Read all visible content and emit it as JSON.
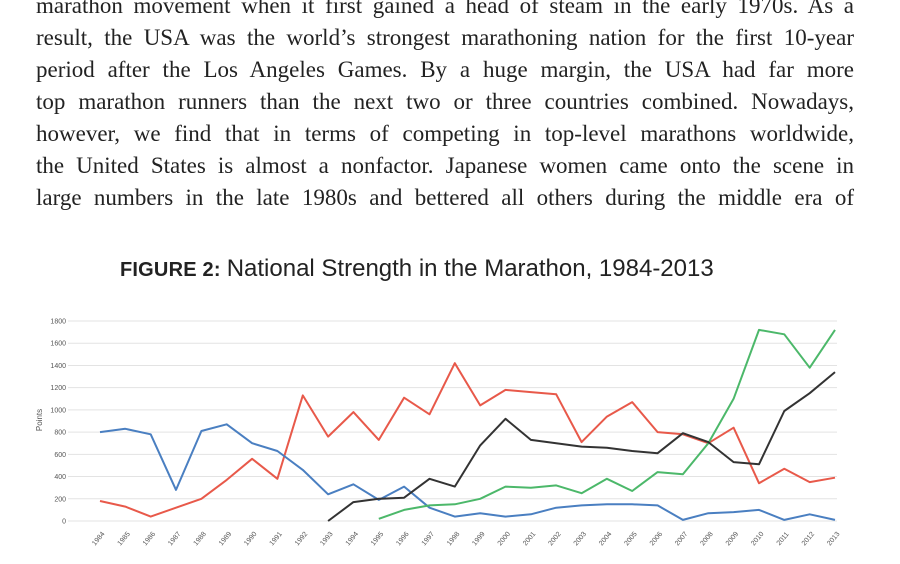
{
  "body_text": {
    "lines": [
      "marathon movement when it first gained a head of steam in the early 1970s. As a",
      "result, the USA was the world’s strongest marathoning nation for the first 10-year",
      "period after the Los Angeles Games. By a huge margin, the USA had far more",
      "top marathon runners than the next two or three countries combined. Nowadays,",
      "however, we find that in terms of competing in top-level marathons worldwide,",
      "the United States is almost a nonfactor. Japanese women came onto the scene in",
      "large numbers in the late 1980s and bettered all others during the middle era of"
    ]
  },
  "figure": {
    "label": "FIGURE 2:",
    "title": "National Strength in the Marathon, 1984-2013"
  },
  "chart_data": {
    "type": "line",
    "title": "FIGURE 2: National Strength in the Marathon, 1984-2013",
    "xlabel": "",
    "ylabel": "Points",
    "ylim": [
      0,
      1800
    ],
    "yticks": [
      "1800",
      "1600",
      "1400",
      "1200",
      "1000",
      "800",
      "600",
      "400",
      "200",
      "0"
    ],
    "grid": true,
    "legend": "none",
    "x": [
      "1984",
      "1985",
      "1986",
      "1987",
      "1988",
      "1989",
      "1990",
      "1991",
      "1992",
      "1993",
      "1994",
      "1995",
      "1996",
      "1997",
      "1998",
      "1999",
      "2000",
      "2001",
      "2002",
      "2003",
      "2004",
      "2005",
      "2006",
      "2007",
      "2008",
      "2009",
      "2010",
      "2011",
      "2012",
      "2013"
    ],
    "series": [
      {
        "color": "#e8594a",
        "values": [
          180,
          130,
          40,
          120,
          200,
          370,
          560,
          380,
          1130,
          760,
          980,
          730,
          1110,
          960,
          1420,
          1040,
          1180,
          1160,
          1140,
          710,
          940,
          1070,
          800,
          780,
          700,
          840,
          340,
          470,
          350,
          390
        ]
      },
      {
        "color": "#4a7fc1",
        "values": [
          800,
          830,
          780,
          280,
          810,
          870,
          700,
          630,
          460,
          240,
          330,
          190,
          310,
          120,
          40,
          70,
          40,
          60,
          120,
          140,
          150,
          150,
          140,
          10,
          70,
          80,
          100,
          10,
          60,
          10
        ]
      },
      {
        "color": "#4cb86a",
        "values": [
          null,
          null,
          null,
          null,
          null,
          null,
          null,
          null,
          null,
          null,
          null,
          20,
          100,
          140,
          150,
          200,
          310,
          300,
          320,
          250,
          380,
          270,
          440,
          420,
          700,
          1100,
          1720,
          1680,
          1380,
          1720
        ]
      },
      {
        "color": "#333333",
        "values": [
          null,
          null,
          null,
          null,
          null,
          null,
          null,
          null,
          null,
          0,
          170,
          200,
          210,
          380,
          310,
          680,
          920,
          730,
          700,
          670,
          660,
          630,
          610,
          790,
          710,
          530,
          510,
          990,
          1150,
          1340
        ]
      }
    ]
  }
}
